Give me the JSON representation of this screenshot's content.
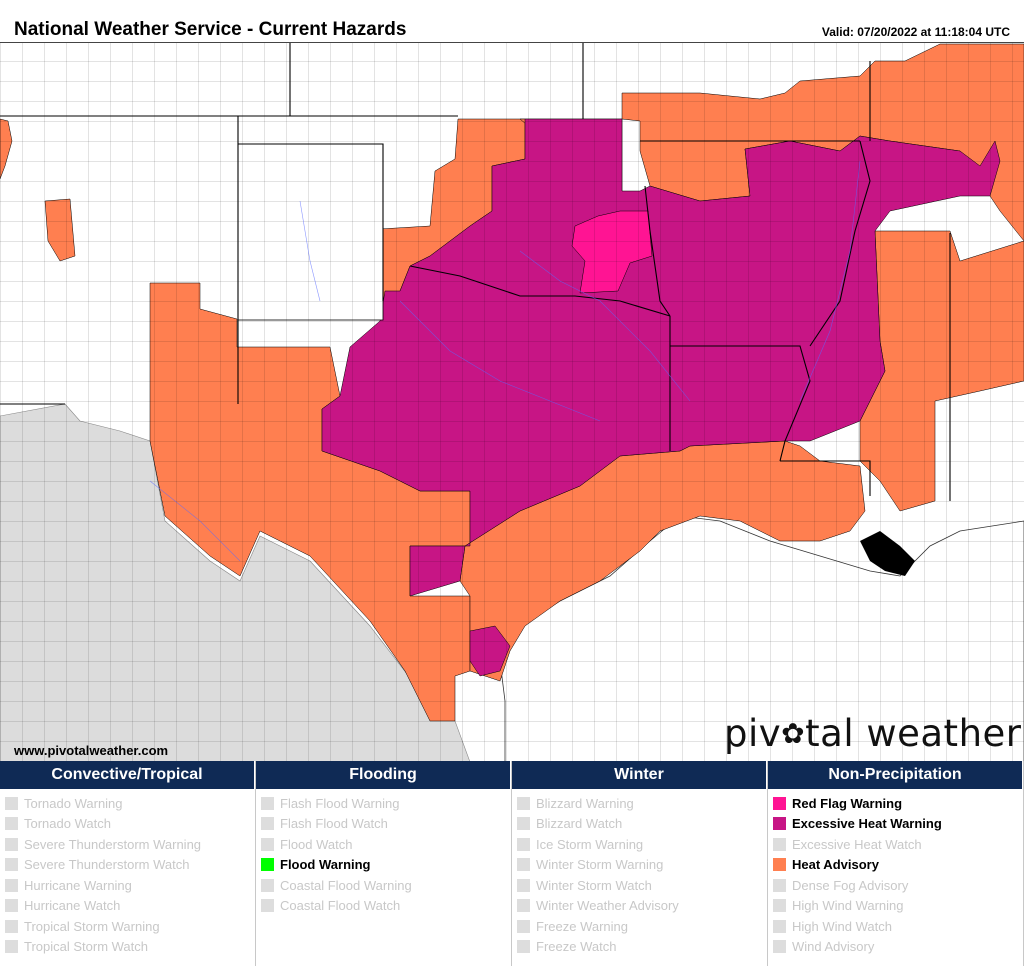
{
  "header": {
    "title": "National Weather Service - Current Hazards",
    "valid": "Valid: 07/20/2022 at 11:18:04 UTC"
  },
  "footer": {
    "url": "www.pivotalweather.com",
    "logo_left": "piv",
    "logo_right": "tal weather"
  },
  "colors": {
    "red_flag_warning": "#ff1493",
    "excessive_heat_warning": "#c71585",
    "heat_advisory": "#ff7f50",
    "flood_warning": "#00ff00",
    "inactive": "#dddddd",
    "mexico": "#dcdcdc",
    "legend_header": "#0f2a55"
  },
  "legend": [
    {
      "heading": "Convective/Tropical",
      "items": [
        {
          "label": "Tornado Warning",
          "active": false
        },
        {
          "label": "Tornado Watch",
          "active": false
        },
        {
          "label": "Severe Thunderstorm Warning",
          "active": false
        },
        {
          "label": "Severe Thunderstorm Watch",
          "active": false
        },
        {
          "label": "Hurricane Warning",
          "active": false
        },
        {
          "label": "Hurricane Watch",
          "active": false
        },
        {
          "label": "Tropical Storm Warning",
          "active": false
        },
        {
          "label": "Tropical Storm Watch",
          "active": false
        }
      ]
    },
    {
      "heading": "Flooding",
      "items": [
        {
          "label": "Flash Flood Warning",
          "active": false
        },
        {
          "label": "Flash Flood Watch",
          "active": false
        },
        {
          "label": "Flood Watch",
          "active": false
        },
        {
          "label": "Flood Warning",
          "active": true,
          "color": "#00ff00"
        },
        {
          "label": "Coastal Flood Warning",
          "active": false
        },
        {
          "label": "Coastal Flood Watch",
          "active": false
        }
      ]
    },
    {
      "heading": "Winter",
      "items": [
        {
          "label": "Blizzard Warning",
          "active": false
        },
        {
          "label": "Blizzard Watch",
          "active": false
        },
        {
          "label": "Ice Storm Warning",
          "active": false
        },
        {
          "label": "Winter Storm Warning",
          "active": false
        },
        {
          "label": "Winter Storm Watch",
          "active": false
        },
        {
          "label": "Winter Weather Advisory",
          "active": false
        },
        {
          "label": "Freeze Warning",
          "active": false
        },
        {
          "label": "Freeze Watch",
          "active": false
        }
      ]
    },
    {
      "heading": "Non-Precipitation",
      "items": [
        {
          "label": "Red Flag Warning",
          "active": true,
          "color": "#ff1493"
        },
        {
          "label": "Excessive Heat Warning",
          "active": true,
          "color": "#c71585"
        },
        {
          "label": "Excessive Heat Watch",
          "active": false
        },
        {
          "label": "Heat Advisory",
          "active": true,
          "color": "#ff7f50"
        },
        {
          "label": "Dense Fog Advisory",
          "active": false
        },
        {
          "label": "High Wind Warning",
          "active": false
        },
        {
          "label": "High Wind Watch",
          "active": false
        },
        {
          "label": "Wind Advisory",
          "active": false
        }
      ]
    }
  ]
}
